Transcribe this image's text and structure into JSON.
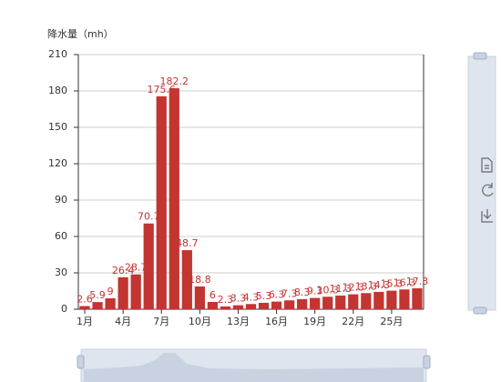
{
  "chart_data": {
    "type": "bar",
    "y_axis_label": "降水量（mh）",
    "categories": [
      "1月",
      null,
      null,
      "4月",
      null,
      null,
      "7月",
      null,
      null,
      "10月",
      null,
      null,
      "13月",
      null,
      null,
      "16月",
      null,
      null,
      "19月",
      null,
      null,
      "22月",
      null,
      null,
      "25月",
      null,
      null
    ],
    "values": [
      2.6,
      5.9,
      9,
      26.4,
      28.7,
      70.7,
      175.6,
      182.2,
      48.7,
      18.8,
      6,
      2.3,
      3.3,
      4.3,
      5.3,
      6.3,
      7.3,
      8.3,
      9.3,
      10.3,
      11.3,
      12.3,
      13.3,
      14.3,
      15.3,
      16.3,
      17.3
    ],
    "color": "#c23531",
    "ylim": [
      0,
      210
    ],
    "yticks": [
      0,
      30,
      60,
      90,
      120,
      150,
      180,
      210
    ],
    "grid": true
  }
}
